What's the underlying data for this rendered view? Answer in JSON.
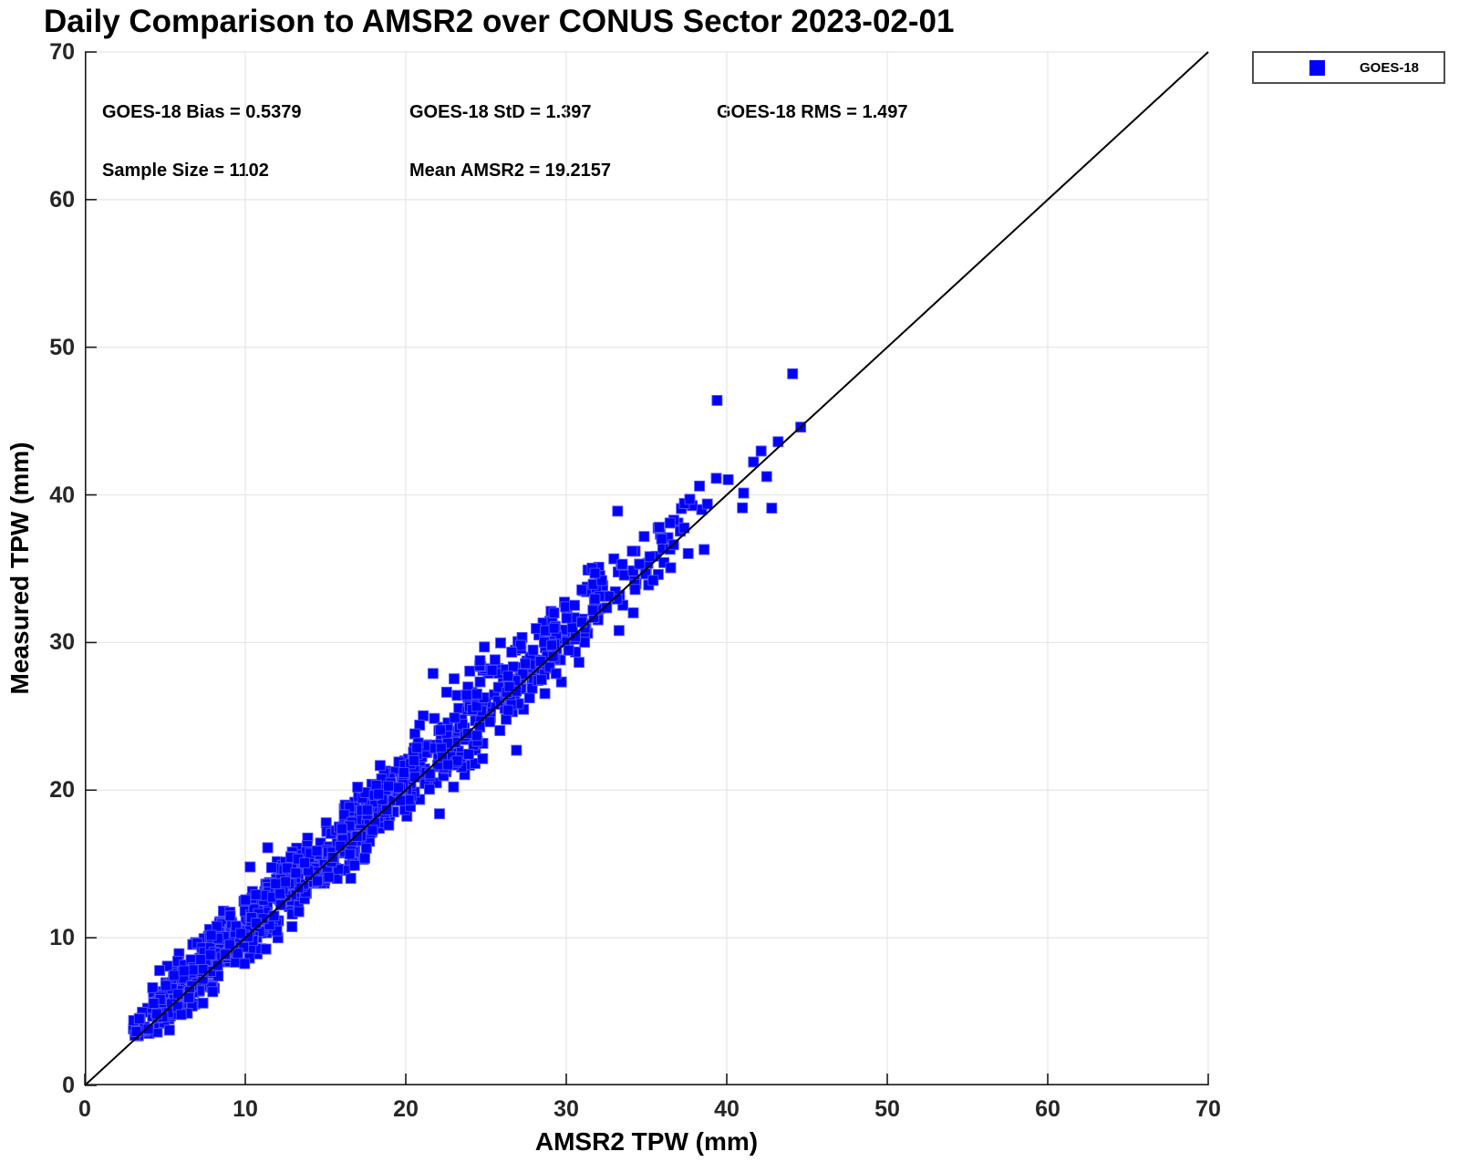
{
  "title": "Daily Comparison to AMSR2 over CONUS Sector 2023-02-01",
  "annotations": {
    "bias": "GOES-18 Bias = 0.5379",
    "std": "GOES-18 StD = 1.397",
    "rms": "GOES-18 RMS = 1.497",
    "sample_size": "Sample Size = 1102",
    "mean": "Mean AMSR2 = 19.2157"
  },
  "legend": {
    "label": "GOES-18",
    "marker": "square",
    "marker_color": "#0000ff",
    "position": "top-right-outside"
  },
  "chart_data": {
    "type": "scatter",
    "title": "Daily Comparison to AMSR2 over CONUS Sector 2023-02-01",
    "xlabel": "AMSR2 TPW (mm)",
    "ylabel": "Measured TPW (mm)",
    "xlim": [
      0,
      70
    ],
    "ylim": [
      0,
      70
    ],
    "xticks": [
      0,
      10,
      20,
      30,
      40,
      50,
      60,
      70
    ],
    "yticks": [
      0,
      10,
      20,
      30,
      40,
      50,
      60,
      70
    ],
    "grid": true,
    "grid_color": "#e6e6e6",
    "axis_color": "#1a1a1a",
    "reference_line": {
      "from": [
        0,
        0
      ],
      "to": [
        70,
        70
      ],
      "color": "#000000",
      "width": 2
    },
    "series": [
      {
        "name": "GOES-18",
        "marker": "square",
        "marker_color": "#0000ff",
        "marker_edge_color": "#5555ff",
        "marker_size_px": 11,
        "sample_size": 1102,
        "bias": 0.5379,
        "std": 1.397,
        "rms": 1.497,
        "mean_x": 19.2157,
        "x_range": [
          3,
          45
        ],
        "relation": "y = x + bias + noise(std), tighter spread at low x, slight positive skew",
        "x_cdf": [
          [
            3,
            0
          ],
          [
            5,
            0.06
          ],
          [
            7,
            0.16
          ],
          [
            9,
            0.27
          ],
          [
            11,
            0.36
          ],
          [
            13,
            0.435
          ],
          [
            15,
            0.49
          ],
          [
            17,
            0.55
          ],
          [
            19,
            0.6
          ],
          [
            21,
            0.66
          ],
          [
            23,
            0.71
          ],
          [
            25,
            0.77
          ],
          [
            27,
            0.82
          ],
          [
            29,
            0.87
          ],
          [
            31,
            0.91
          ],
          [
            33,
            0.94
          ],
          [
            35,
            0.962
          ],
          [
            37,
            0.978
          ],
          [
            39,
            0.989
          ],
          [
            41,
            0.995
          ],
          [
            43,
            0.9985
          ],
          [
            45,
            1
          ]
        ],
        "outliers": [
          [
            39.4,
            46.4
          ],
          [
            44.1,
            48.2
          ],
          [
            42.8,
            39.1
          ],
          [
            38.3,
            40.6
          ],
          [
            43.2,
            43.6
          ],
          [
            33.2,
            38.9
          ],
          [
            24.9,
            29.7
          ],
          [
            21.7,
            27.9
          ],
          [
            22.1,
            18.4
          ],
          [
            26.9,
            22.7
          ],
          [
            11.4,
            16.1
          ],
          [
            10.3,
            14.8
          ],
          [
            17.0,
            20.2
          ],
          [
            16.8,
            14.9
          ]
        ]
      }
    ]
  }
}
